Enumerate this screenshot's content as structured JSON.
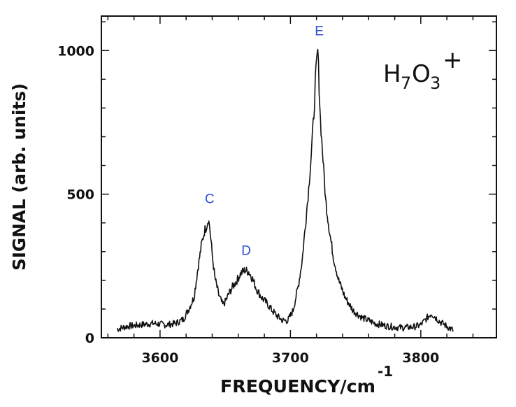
{
  "chart_data": {
    "type": "line",
    "xlabel": "FREQUENCY/cm",
    "xlabel_superscript": "-1",
    "ylabel": "SIGNAL (arb. units)",
    "xlim": [
      3555,
      3858
    ],
    "ylim": [
      0,
      1120
    ],
    "xticks": [
      3600,
      3700,
      3800
    ],
    "yticks": [
      0,
      500,
      1000
    ],
    "grid": false,
    "species_label": {
      "main": "H",
      "sub1": "7",
      "mid": "O",
      "sub2": "3",
      "sup": "+"
    },
    "peaks": [
      {
        "name": "C",
        "x": 3637,
        "y": 415
      },
      {
        "name": "D",
        "x": 3665,
        "y": 235
      },
      {
        "name": "E",
        "x": 3721,
        "y": 1000
      }
    ],
    "series": [
      {
        "x": [
          3567,
          3575,
          3585,
          3595,
          3605,
          3612,
          3618,
          3622,
          3626,
          3629,
          3632,
          3634,
          3636,
          3637,
          3638,
          3640,
          3642,
          3645,
          3648,
          3650,
          3653,
          3656,
          3659,
          3662,
          3665,
          3668,
          3671,
          3674,
          3678,
          3682,
          3686,
          3690,
          3694,
          3698,
          3702,
          3706,
          3709,
          3712,
          3714,
          3716,
          3718,
          3719,
          3720,
          3721,
          3722,
          3723,
          3725,
          3727,
          3730,
          3733,
          3737,
          3742,
          3748,
          3755,
          3765,
          3775,
          3785,
          3795,
          3800,
          3805,
          3808,
          3811,
          3815,
          3820,
          3825
        ],
        "y": [
          30,
          40,
          45,
          50,
          45,
          50,
          65,
          100,
          140,
          240,
          330,
          370,
          395,
          415,
          390,
          290,
          210,
          150,
          115,
          125,
          155,
          180,
          200,
          225,
          235,
          230,
          205,
          170,
          140,
          120,
          95,
          75,
          60,
          60,
          95,
          180,
          270,
          420,
          520,
          640,
          780,
          880,
          950,
          1000,
          880,
          760,
          620,
          480,
          370,
          280,
          200,
          140,
          95,
          70,
          50,
          40,
          35,
          38,
          45,
          70,
          85,
          72,
          55,
          40,
          25
        ]
      }
    ]
  }
}
